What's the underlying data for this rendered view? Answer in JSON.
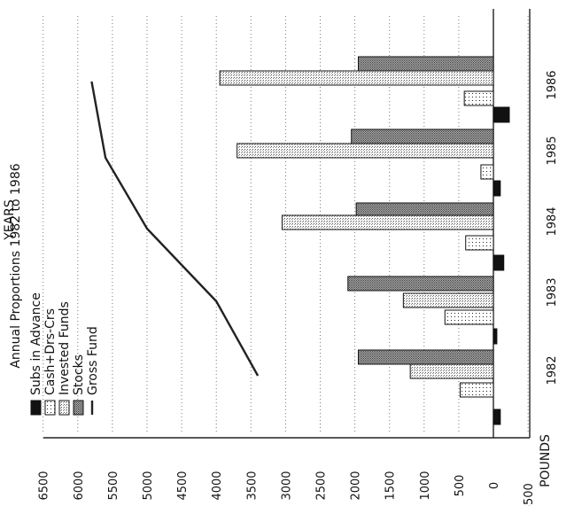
{
  "chart_data": {
    "type": "bar",
    "title": "Annual Proportions 1982 to 1986",
    "ylabel": "POUNDS",
    "xlabel": "YEARS",
    "categories": [
      "1982",
      "1983",
      "1984",
      "1985",
      "1986"
    ],
    "yticks": [
      "-500",
      "0",
      "500",
      "1000",
      "1500",
      "2000",
      "2500",
      "3000",
      "3500",
      "4000",
      "4500",
      "5000",
      "5500",
      "6000",
      "6500"
    ],
    "ylim": [
      -500,
      6500
    ],
    "grid": true,
    "legend_position": "top-left",
    "series": [
      {
        "name": "Subs in Advance",
        "kind": "bar",
        "fill": "solid-black",
        "values": [
          -100,
          -50,
          -150,
          -100,
          -230
        ]
      },
      {
        "name": "Cash+Drs-Crs",
        "kind": "bar",
        "fill": "dotted",
        "values": [
          480,
          700,
          400,
          180,
          420
        ]
      },
      {
        "name": "Invested Funds",
        "kind": "bar",
        "fill": "light-hatch",
        "values": [
          1200,
          1300,
          0,
          0,
          0
        ]
      },
      {
        "name": "Stocks",
        "kind": "bar",
        "fill": "dark-hatch",
        "values": [
          1950,
          2100,
          1980,
          2050,
          1950
        ]
      },
      {
        "name": "Gross Fund",
        "kind": "line",
        "values": [
          3400,
          4000,
          5000,
          5600,
          5800
        ]
      },
      {
        "name": "",
        "kind": "bar",
        "fill": "light-hatch",
        "values": [
          0,
          0,
          3050,
          3700,
          3950
        ]
      }
    ]
  }
}
